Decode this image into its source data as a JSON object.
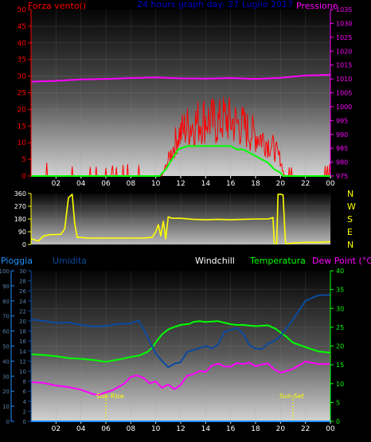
{
  "header": {
    "wind_label": "Forza vento()",
    "date_title": "24 hours graph day:  27 Luglio 2017",
    "pressure_label": "Pressione"
  },
  "row_labels": {
    "rain": "Pioggia",
    "humidity": "Umidita",
    "windchill": "Windchill",
    "temperature": "Temperatura",
    "dewpoint": "Dew Point (°C)"
  },
  "annotations": {
    "sunrise": "Sun Rise",
    "sunset": "Sun Set"
  },
  "direction_labels": [
    "N",
    "W",
    "S",
    "E",
    "N"
  ],
  "x_ticks": [
    "02",
    "04",
    "06",
    "08",
    "10",
    "12",
    "14",
    "16",
    "18",
    "20",
    "22",
    "00"
  ],
  "colors": {
    "wind": "#ff0000",
    "gust": "#00ff00",
    "pressure": "#ff00ff",
    "direction": "#ffff00",
    "humidity": "#0a4aa0",
    "temperature": "#00ff00",
    "dewpoint": "#ff00ff",
    "rain": "#1e90ff",
    "windchill": "#ffffff",
    "date_title": "#0000cc",
    "annotation": "#ffff00"
  },
  "chart_data": [
    {
      "type": "line",
      "name": "wind-pressure",
      "x_range": [
        0,
        24
      ],
      "wind_axis": {
        "ylim": [
          0,
          50
        ],
        "ticks": [
          0,
          5,
          10,
          15,
          20,
          25,
          30,
          35,
          40,
          45,
          50
        ]
      },
      "pressure_axis": {
        "ylim": [
          975,
          1035
        ],
        "ticks": [
          975,
          980,
          985,
          990,
          995,
          1000,
          1005,
          1010,
          1015,
          1020,
          1025,
          1030,
          1035
        ]
      },
      "series": [
        {
          "name": "Forza vento",
          "role": "wind_gust",
          "x": [
            0,
            10.5,
            11.2,
            11.8,
            12.5,
            13,
            13.5,
            14,
            14.5,
            15,
            15.5,
            16,
            16.5,
            17,
            17.5,
            18,
            18.5,
            19,
            19.5,
            20,
            20.3,
            24
          ],
          "y": [
            0,
            0,
            8,
            15,
            18,
            19,
            20,
            21,
            20,
            19,
            21,
            20,
            19,
            18,
            16,
            15,
            14,
            12,
            10,
            6,
            0,
            0
          ]
        },
        {
          "name": "wind_avg",
          "role": "wind_avg",
          "x": [
            0,
            10.3,
            10.8,
            11.3,
            11.8,
            12.5,
            13,
            14,
            15,
            16,
            16.5,
            17,
            17.5,
            18,
            18.5,
            19,
            19.5,
            20,
            20.2,
            24
          ],
          "y": [
            0,
            0,
            2,
            5,
            8,
            9,
            9,
            9,
            9,
            9,
            8,
            8,
            7,
            6,
            5,
            4,
            2,
            1,
            0,
            0
          ]
        },
        {
          "name": "Pressione",
          "role": "pressure",
          "x": [
            0,
            2,
            4,
            6,
            8,
            10,
            12,
            14,
            16,
            18,
            20,
            22,
            24
          ],
          "y": [
            1009.0,
            1009.3,
            1009.8,
            1010.0,
            1010.3,
            1010.5,
            1010.2,
            1010.1,
            1010.3,
            1010.0,
            1010.4,
            1011.2,
            1011.5
          ]
        }
      ]
    },
    {
      "type": "line",
      "name": "wind-direction",
      "x_range": [
        0,
        24
      ],
      "ylim": [
        0,
        360
      ],
      "y_ticks": [
        0,
        90,
        180,
        270,
        360
      ],
      "series": [
        {
          "name": "direction",
          "x": [
            0,
            0.6,
            1,
            1.5,
            2,
            2.4,
            2.7,
            3,
            3.3,
            3.5,
            3.7,
            4,
            4.5,
            5,
            6,
            7,
            8,
            9,
            9.7,
            10,
            10.2,
            10.4,
            10.6,
            10.8,
            11,
            11.3,
            11.6,
            12,
            13,
            14,
            15,
            16,
            17,
            18,
            19,
            19.4,
            19.5,
            19.7,
            19.8,
            20,
            20.2,
            20.4,
            20.6,
            21,
            22,
            23,
            24
          ],
          "y": [
            40,
            25,
            60,
            70,
            70,
            72,
            110,
            330,
            355,
            150,
            50,
            50,
            45,
            45,
            45,
            45,
            45,
            45,
            50,
            90,
            140,
            60,
            165,
            40,
            195,
            185,
            185,
            185,
            178,
            175,
            178,
            175,
            178,
            180,
            180,
            190,
            10,
            5,
            355,
            355,
            350,
            10,
            5,
            10,
            15,
            15,
            20
          ]
        }
      ]
    },
    {
      "type": "line",
      "name": "temperature-humidity",
      "x_range": [
        0,
        24
      ],
      "rain_axis": {
        "ylim": [
          0,
          100
        ],
        "ticks": [
          0,
          10,
          20,
          30,
          40,
          50,
          60,
          70,
          80,
          90,
          100
        ]
      },
      "humidity_axis": {
        "ylim": [
          0,
          30
        ],
        "ticks": [
          0,
          2,
          4,
          6,
          8,
          10,
          12,
          14,
          16,
          18,
          20,
          22,
          24,
          26,
          28,
          30
        ]
      },
      "temperature_axis": {
        "ylim": [
          0,
          40
        ],
        "ticks": [
          0,
          5,
          10,
          15,
          20,
          25,
          30,
          35,
          40
        ]
      },
      "series": [
        {
          "name": "Umidita",
          "role": "humidity",
          "axis": "humidity",
          "x": [
            0,
            1,
            2,
            3,
            4,
            5,
            6,
            7,
            8,
            8.6,
            9,
            9.5,
            10,
            10.5,
            11,
            11.5,
            12,
            12.5,
            13,
            13.5,
            14,
            14.5,
            15,
            15.5,
            16,
            16.5,
            17,
            17.5,
            18,
            18.5,
            19,
            19.5,
            20,
            20.5,
            21,
            22,
            23,
            24
          ],
          "y": [
            20.3,
            20,
            19.6,
            19.7,
            19.2,
            18.9,
            19,
            19.4,
            19.5,
            20.1,
            18.5,
            16,
            13.5,
            12,
            10.8,
            11.5,
            11.8,
            13.8,
            14.2,
            14.6,
            15,
            14.5,
            15.3,
            17.8,
            18.2,
            18.6,
            17.5,
            15.2,
            14.5,
            14.4,
            15.5,
            16,
            17,
            18.6,
            20.3,
            24,
            25.1,
            25.2
          ]
        },
        {
          "name": "Temperatura",
          "role": "temperature",
          "axis": "temperature",
          "x": [
            0,
            1,
            2,
            3,
            4,
            5,
            6,
            7,
            8,
            8.7,
            9.3,
            9.7,
            10,
            10.5,
            11,
            11.5,
            12,
            12.7,
            13,
            13.5,
            14,
            15,
            16,
            16.5,
            17,
            18,
            19,
            19.6,
            20,
            20.5,
            21,
            22,
            23,
            24
          ],
          "y": [
            17.8,
            17.6,
            17.3,
            16.8,
            16.6,
            16.3,
            15.8,
            16.4,
            17.1,
            17.5,
            18.4,
            19.5,
            21,
            23.1,
            24.4,
            25.1,
            25.6,
            25.9,
            26.4,
            26.6,
            26.4,
            26.6,
            25.8,
            25.6,
            25.6,
            25.3,
            25.5,
            24.6,
            23.6,
            22.4,
            20.9,
            19.7,
            18.6,
            18.2
          ]
        },
        {
          "name": "Dew Point (°C)",
          "role": "dewpoint",
          "axis": "temperature",
          "x": [
            0,
            1,
            2,
            3,
            4,
            5,
            5.5,
            6,
            6.5,
            7,
            7.5,
            8,
            8.5,
            9,
            9.5,
            10,
            10.5,
            11,
            11.5,
            12,
            12.5,
            13,
            13.5,
            14,
            14.5,
            15,
            15.5,
            16,
            16.5,
            17,
            17.5,
            18,
            18.5,
            19,
            19.5,
            20,
            21,
            22,
            23,
            24
          ],
          "y": [
            10.4,
            10.2,
            9.5,
            9.1,
            8.4,
            7.2,
            7.1,
            7.7,
            8.2,
            9.1,
            10.1,
            11.8,
            12.2,
            11.6,
            10.1,
            10.6,
            8.9,
            9.8,
            8.5,
            9.7,
            12.1,
            12.5,
            13.4,
            13.1,
            14.8,
            15.3,
            14.6,
            14.5,
            15.5,
            15.2,
            15.6,
            14.6,
            15.1,
            15.4,
            13.8,
            12.9,
            13.9,
            15.9,
            15.2,
            15.3
          ]
        },
        {
          "name": "Pioggia",
          "role": "rain",
          "axis": "rain",
          "x": [
            0,
            24
          ],
          "y": [
            0,
            0
          ]
        }
      ]
    }
  ]
}
